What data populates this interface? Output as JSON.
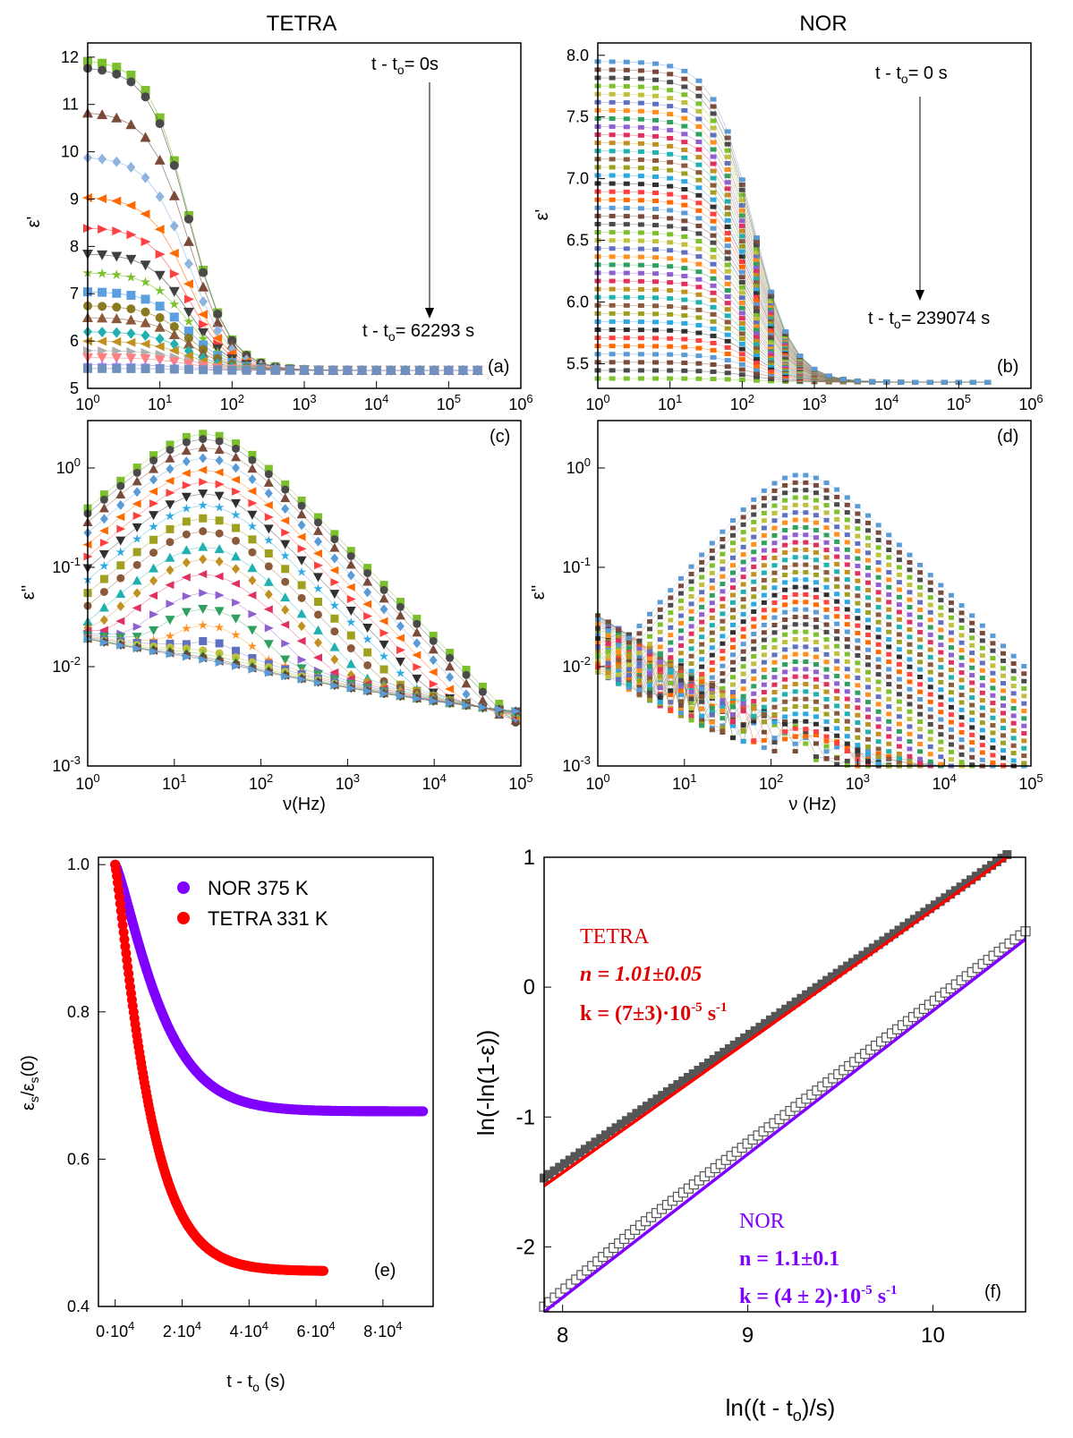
{
  "column_titles": {
    "left": "TETRA",
    "right": "NOR"
  },
  "panels": {
    "a": {
      "label": "(a)",
      "ylabel": "ε'",
      "ann_top": "t - t",
      "ann_top_sub": "o",
      "ann_top_rest": "= 0s",
      "ann_bottom": "t - t",
      "ann_bottom_sub": "o",
      "ann_bottom_rest": "= 62293 s"
    },
    "b": {
      "label": "(b)",
      "ylabel": "ε'",
      "ann_top": "t - t",
      "ann_top_sub": "o",
      "ann_top_rest": "= 0 s",
      "ann_bottom": "t - t",
      "ann_bottom_sub": "o",
      "ann_bottom_rest": "= 239074 s"
    },
    "c": {
      "label": "(c)",
      "ylabel": "ε''",
      "xlabel": "ν(Hz)"
    },
    "d": {
      "label": "(d)",
      "ylabel": "ε''",
      "xlabel": "ν (Hz)"
    },
    "e": {
      "label": "(e)",
      "ylabel_main": "ε",
      "ylabel_sub1": "s",
      "ylabel_mid": "/ε",
      "ylabel_sub2": "s",
      "ylabel_end": "(0)",
      "xlabel_main": "t - t",
      "xlabel_sub": "o",
      "xlabel_end": " (s)"
    },
    "f": {
      "label": "(f)",
      "ylabel": "ln(-ln(1-ε))",
      "xlabel": "ln((t - t",
      "xlabel_sub": "o",
      "xlabel_end": ")/s)"
    }
  },
  "annotations_f": {
    "tetra_name": "TETRA",
    "tetra_n": "n = 1.01±0.05",
    "tetra_k": "k = (7±3)·10",
    "tetra_k_exp": "-5",
    "tetra_k_unit": " s",
    "tetra_k_unit_exp": "-1",
    "nor_name": "NOR",
    "nor_n": "n = 1.1±0.1",
    "nor_k": "k = (4 ± 2)·10",
    "nor_k_exp": "-5",
    "nor_k_unit": " s",
    "nor_k_unit_exp": "-1"
  },
  "colors": {
    "nor": "#8000ff",
    "tetra": "#ff0000",
    "tetra_text": "#e00000",
    "fit_marker": "#555555"
  },
  "chart_data": [
    {
      "panel": "a",
      "type": "scatter",
      "title": "TETRA",
      "xlabel": "",
      "ylabel": "ε'",
      "xscale": "log",
      "xlim": [
        1,
        1000000
      ],
      "ylim": [
        5,
        12.3
      ],
      "xticks": [
        "10^0",
        "10^1",
        "10^2",
        "10^3",
        "10^4",
        "10^5",
        "10^6"
      ],
      "yticks": [
        5,
        6,
        7,
        8,
        9,
        10,
        11,
        12
      ],
      "model": {
        "tau_hz": 25,
        "eps_inf": 5.38
      },
      "series_eps_s": [
        11.95,
        11.8,
        10.85,
        9.9,
        9.05,
        8.4,
        7.85,
        7.45,
        7.05,
        6.75,
        6.5,
        6.2,
        6.0,
        5.8,
        5.65,
        5.5,
        5.42
      ],
      "series_colors": [
        "#7cc02e",
        "#4a4a4a",
        "#7a4a3a",
        "#8fb4e0",
        "#ff6a00",
        "#ff4040",
        "#404040",
        "#7cc02e",
        "#5aa0e0",
        "#8a7a20",
        "#8a5a3a",
        "#20b0b0",
        "#c09020",
        "#b0b0b0",
        "#ff8080",
        "#b080ff",
        "#7090c0"
      ]
    },
    {
      "panel": "b",
      "type": "scatter",
      "title": "NOR",
      "xlabel": "",
      "ylabel": "ε'",
      "xscale": "log",
      "xlim": [
        1,
        1000000
      ],
      "ylim": [
        5.3,
        8.1
      ],
      "xticks": [
        "10^0",
        "10^1",
        "10^2",
        "10^3",
        "10^4",
        "10^5",
        "10^6"
      ],
      "yticks": [
        5.5,
        6.0,
        6.5,
        7.0,
        7.5,
        8.0
      ],
      "model": {
        "tau_hz": 140,
        "eps_inf": 5.35
      },
      "eps_s_range": [
        5.38,
        7.95
      ],
      "n_series": 40
    },
    {
      "panel": "c",
      "type": "scatter",
      "xlabel": "ν(Hz)",
      "ylabel": "ε''",
      "xscale": "log",
      "yscale": "log",
      "xlim": [
        1,
        100000
      ],
      "ylim": [
        0.001,
        3
      ],
      "xticks": [
        "10^0",
        "10^1",
        "10^2",
        "10^3",
        "10^4",
        "10^5"
      ],
      "yticks": [
        "10^-3",
        "10^-2",
        "10^-1",
        "10^0"
      ],
      "peak_hz": 25,
      "peak_values": [
        2.2,
        1.95,
        1.6,
        1.25,
        0.95,
        0.72,
        0.55,
        0.42,
        0.31,
        0.23,
        0.16,
        0.12,
        0.085,
        0.055,
        0.038,
        0.026,
        0.018,
        0.012,
        0.008,
        0.005,
        0.0035,
        0.0025
      ]
    },
    {
      "panel": "d",
      "type": "scatter",
      "xlabel": "ν (Hz)",
      "ylabel": "ε''",
      "xscale": "log",
      "yscale": "log",
      "xlim": [
        1,
        100000
      ],
      "ylim": [
        0.001,
        3
      ],
      "xticks": [
        "10^0",
        "10^1",
        "10^2",
        "10^3",
        "10^4",
        "10^5"
      ],
      "yticks": [
        "10^-3",
        "10^-2",
        "10^-1",
        "10^0"
      ],
      "peak_hz": 200,
      "peak_range": [
        0.001,
        0.85
      ],
      "n_series": 40
    },
    {
      "panel": "e",
      "type": "scatter",
      "xlabel": "t - to (s)",
      "ylabel": "εs/εs(0)",
      "xlim": [
        -5000,
        95000
      ],
      "ylim": [
        0.4,
        1.01
      ],
      "xticks": [
        "0·10^4",
        "2·10^4",
        "4·10^4",
        "6·10^4",
        "8·10^4"
      ],
      "yticks": [
        0.4,
        0.6,
        0.8,
        1.0
      ],
      "series": [
        {
          "name": "NOR 375 K",
          "color": "#8000ff",
          "t_end": 92000,
          "plateau": 0.665,
          "tau_s": 15000
        },
        {
          "name": "TETRA 331 K",
          "color": "#ff0000",
          "t_end": 62293,
          "plateau": 0.448,
          "tau_s": 11000
        }
      ]
    },
    {
      "panel": "f",
      "type": "line",
      "xlabel": "ln((t - to)/s)",
      "ylabel": "ln(-ln(1-ε))",
      "xlim": [
        7.9,
        10.5
      ],
      "ylim": [
        -2.5,
        1.0
      ],
      "xticks": [
        8,
        9,
        10
      ],
      "yticks": [
        -2,
        -1,
        0,
        1
      ],
      "series": [
        {
          "name": "TETRA",
          "color": "#ff0000",
          "fit": [
            [
              7.9,
              -1.53
            ],
            [
              10.4,
              1.0
            ]
          ],
          "data_start": [
            7.9,
            -1.47
          ],
          "data_end": [
            10.4,
            1.02
          ]
        },
        {
          "name": "NOR",
          "color": "#8000ff",
          "fit": [
            [
              7.9,
              -2.5
            ],
            [
              10.5,
              0.37
            ]
          ],
          "data_start": [
            7.9,
            -2.4
          ],
          "data_end": [
            10.5,
            0.43
          ]
        }
      ]
    }
  ]
}
